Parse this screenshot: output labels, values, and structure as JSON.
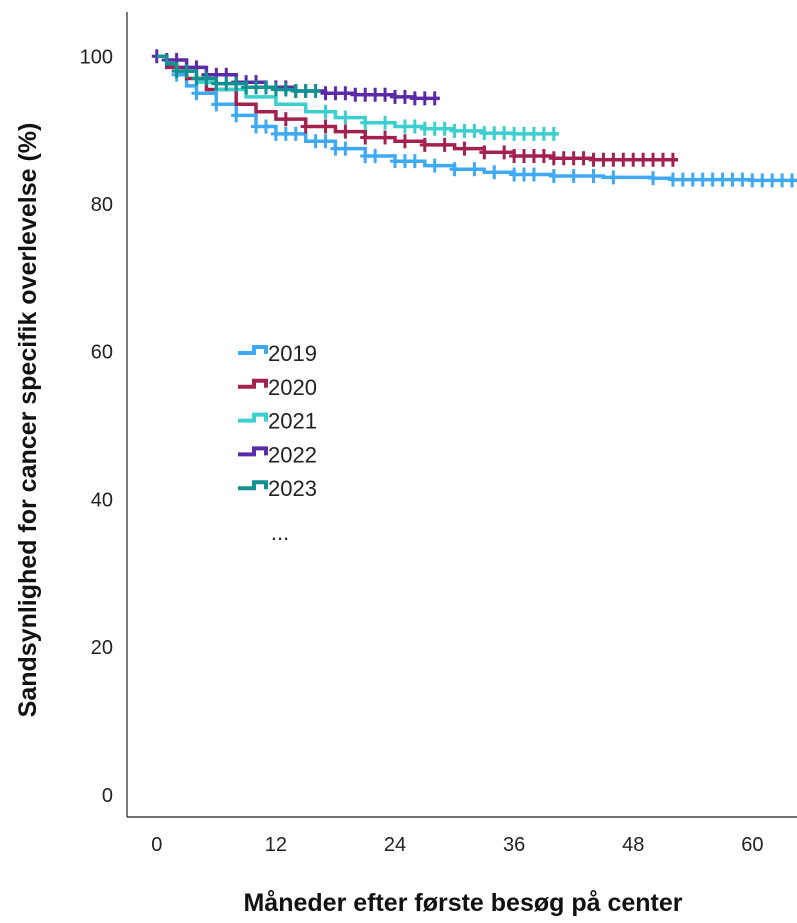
{
  "chart_data": {
    "type": "line",
    "subtype": "kaplan-meier step curves with censor marks",
    "xlabel": "Måneder efter første besøg på center",
    "ylabel": "Sandsynlighed for cancer specifik overlevelse (%)",
    "xlim": [
      -3,
      64.5
    ],
    "ylim": [
      -3,
      106
    ],
    "xticks": [
      0,
      12,
      24,
      36,
      48,
      60
    ],
    "yticks": [
      0,
      20,
      40,
      60,
      80,
      100
    ],
    "grid": false,
    "legend": {
      "placement": "center-left",
      "ellipsis": "..."
    },
    "series": [
      {
        "name": "2019",
        "color": "#3FA9F5",
        "points": [
          [
            0,
            100
          ],
          [
            1,
            98.8
          ],
          [
            2,
            97.5
          ],
          [
            3,
            96
          ],
          [
            4,
            95
          ],
          [
            6,
            93.5
          ],
          [
            8,
            92
          ],
          [
            10,
            90.5
          ],
          [
            12,
            89.5
          ],
          [
            15,
            88.5
          ],
          [
            18,
            87.5
          ],
          [
            21,
            86.5
          ],
          [
            24,
            85.8
          ],
          [
            27,
            85.2
          ],
          [
            30,
            84.7
          ],
          [
            33,
            84.3
          ],
          [
            36,
            84
          ],
          [
            40,
            83.8
          ],
          [
            45,
            83.6
          ],
          [
            50,
            83.5
          ],
          [
            52,
            83.3
          ],
          [
            60,
            83.2
          ],
          [
            64.5,
            83.2
          ]
        ],
        "censor": [
          2,
          4,
          6,
          8,
          10,
          11,
          12,
          13,
          14,
          16,
          17,
          18,
          19,
          21,
          22,
          24,
          25,
          26,
          28,
          30,
          32,
          34,
          36,
          37,
          38,
          40,
          42,
          44,
          46,
          50,
          52,
          53,
          54,
          55,
          56,
          57,
          58,
          59,
          60,
          61,
          62,
          63,
          64
        ]
      },
      {
        "name": "2020",
        "color": "#A3214F",
        "points": [
          [
            0,
            100
          ],
          [
            1,
            98.5
          ],
          [
            3,
            97
          ],
          [
            5,
            95.5
          ],
          [
            8,
            93.5
          ],
          [
            10,
            92.5
          ],
          [
            12,
            91.5
          ],
          [
            15,
            90.5
          ],
          [
            18,
            89.8
          ],
          [
            21,
            89
          ],
          [
            24,
            88.5
          ],
          [
            27,
            88
          ],
          [
            30,
            87.5
          ],
          [
            33,
            87
          ],
          [
            36,
            86.5
          ],
          [
            40,
            86.2
          ],
          [
            44,
            86
          ],
          [
            48,
            86
          ],
          [
            52.5,
            86
          ]
        ],
        "censor": [
          13,
          15,
          17,
          19,
          21,
          23,
          25,
          27,
          29,
          31,
          33,
          35,
          36,
          37,
          38,
          39,
          40,
          41,
          42,
          43,
          44,
          45,
          46,
          47,
          48,
          49,
          50,
          51,
          52
        ]
      },
      {
        "name": "2021",
        "color": "#3CCFCF",
        "points": [
          [
            0,
            100
          ],
          [
            1,
            99
          ],
          [
            2,
            98
          ],
          [
            4,
            96.5
          ],
          [
            6,
            95.5
          ],
          [
            9,
            94.5
          ],
          [
            12,
            93.5
          ],
          [
            15,
            92.5
          ],
          [
            18,
            91.7
          ],
          [
            21,
            91
          ],
          [
            24,
            90.5
          ],
          [
            27,
            90.2
          ],
          [
            30,
            89.9
          ],
          [
            33,
            89.6
          ],
          [
            36,
            89.5
          ],
          [
            40.5,
            89.5
          ]
        ],
        "censor": [
          17,
          19,
          21,
          23,
          25,
          26,
          27,
          28,
          29,
          30,
          31,
          32,
          33,
          34,
          35,
          36,
          37,
          38,
          39,
          40
        ]
      },
      {
        "name": "2022",
        "color": "#5B2AA8",
        "points": [
          [
            0,
            100
          ],
          [
            1,
            99.5
          ],
          [
            3,
            98.5
          ],
          [
            5,
            97.5
          ],
          [
            8,
            96.5
          ],
          [
            11,
            95.8
          ],
          [
            14,
            95.3
          ],
          [
            17,
            95
          ],
          [
            20,
            94.8
          ],
          [
            24,
            94.5
          ],
          [
            26,
            94.3
          ],
          [
            28.5,
            94.3
          ]
        ],
        "censor": [
          0,
          1,
          2,
          3,
          4,
          5,
          6,
          7,
          8,
          9,
          10,
          11,
          12,
          13,
          14,
          15,
          17,
          18,
          19,
          20,
          21,
          22,
          23,
          24,
          25,
          26,
          27,
          28
        ]
      },
      {
        "name": "2023",
        "color": "#11918F",
        "points": [
          [
            0,
            100
          ],
          [
            1,
            99
          ],
          [
            2,
            98
          ],
          [
            4,
            97
          ],
          [
            6,
            96.3
          ],
          [
            9,
            95.8
          ],
          [
            12,
            95.5
          ],
          [
            14,
            95.3
          ],
          [
            16.5,
            95.3
          ]
        ],
        "censor": [
          2,
          3,
          4,
          5,
          6,
          7,
          8,
          9,
          10,
          11,
          12,
          13,
          14,
          15,
          16
        ]
      }
    ]
  }
}
